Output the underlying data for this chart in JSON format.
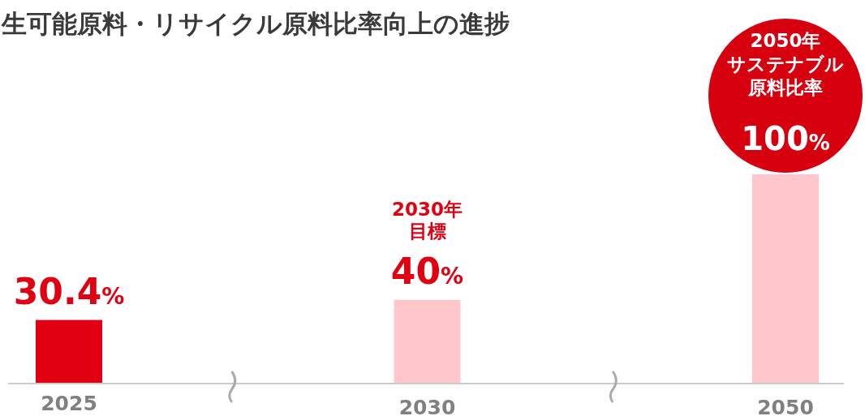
{
  "chart_data": {
    "type": "bar",
    "title": "生可能原料・リサイクル原料比率向上の進捗",
    "categories": [
      "2025",
      "2030",
      "2050"
    ],
    "values": [
      30.4,
      40,
      100
    ],
    "colors": [
      "#e00012",
      "#ffc7cb",
      "#ffc7cb"
    ],
    "value_labels": [
      "30.4%",
      "40%",
      "100%"
    ],
    "annotations": [
      "2030年",
      "目標",
      "2050年",
      "サステナブル",
      "原料比率"
    ]
  }
}
